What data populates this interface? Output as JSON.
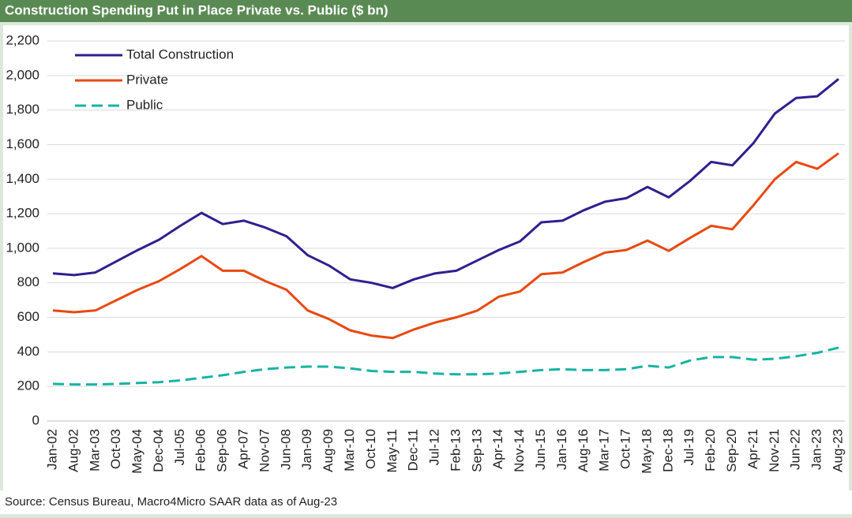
{
  "chart_data": {
    "type": "line",
    "title": "Construction Spending Put in Place Private vs. Public ($ bn)",
    "source": "Source: Census Bureau, Macro4Micro    SAAR data as of Aug-23",
    "categories": [
      "Jan-02",
      "Aug-02",
      "Mar-03",
      "Oct-03",
      "May-04",
      "Dec-04",
      "Jul-05",
      "Feb-06",
      "Sep-06",
      "Apr-07",
      "Nov-07",
      "Jun-08",
      "Jan-09",
      "Aug-09",
      "Mar-10",
      "Oct-10",
      "May-11",
      "Dec-11",
      "Jul-12",
      "Feb-13",
      "Sep-13",
      "Apr-14",
      "Nov-14",
      "Jun-15",
      "Jan-16",
      "Aug-16",
      "Mar-17",
      "Oct-17",
      "May-18",
      "Dec-18",
      "Jul-19",
      "Feb-20",
      "Sep-20",
      "Apr-21",
      "Nov-21",
      "Jun-22",
      "Jan-23",
      "Aug-23"
    ],
    "series": [
      {
        "name": "Total Construction",
        "color": "#2e1f8f",
        "dash": false,
        "values": [
          855,
          845,
          860,
          925,
          990,
          1050,
          1130,
          1205,
          1140,
          1160,
          1120,
          1070,
          960,
          900,
          820,
          800,
          770,
          820,
          855,
          870,
          930,
          990,
          1040,
          1150,
          1160,
          1220,
          1270,
          1290,
          1355,
          1295,
          1390,
          1500,
          1480,
          1610,
          1780,
          1870,
          1880,
          1980
        ]
      },
      {
        "name": "Private",
        "color": "#e8490f",
        "dash": false,
        "values": [
          640,
          630,
          640,
          700,
          760,
          810,
          880,
          955,
          870,
          870,
          810,
          760,
          640,
          590,
          525,
          495,
          480,
          530,
          570,
          600,
          640,
          720,
          750,
          850,
          860,
          920,
          975,
          990,
          1045,
          985,
          1060,
          1130,
          1110,
          1250,
          1400,
          1500,
          1460,
          1550
        ]
      },
      {
        "name": "Public",
        "color": "#17b3a3",
        "dash": true,
        "values": [
          215,
          212,
          212,
          215,
          220,
          225,
          235,
          250,
          265,
          285,
          300,
          310,
          315,
          315,
          305,
          290,
          285,
          285,
          275,
          270,
          270,
          275,
          285,
          295,
          300,
          295,
          295,
          300,
          320,
          310,
          350,
          370,
          370,
          355,
          360,
          375,
          395,
          425
        ]
      }
    ],
    "ylim": [
      0,
      2200
    ],
    "yticks": [
      0,
      200,
      400,
      600,
      800,
      {
        "value": 1000,
        "label": "1,000"
      },
      {
        "value": 1200,
        "label": "1,200"
      },
      {
        "value": 1400,
        "label": "1,400"
      },
      {
        "value": 1600,
        "label": "1,600"
      },
      {
        "value": 1800,
        "label": "1,800"
      },
      {
        "value": 2000,
        "label": "2,000"
      },
      {
        "value": 2200,
        "label": "2,200"
      }
    ],
    "grid": true,
    "legend": "top-left"
  }
}
